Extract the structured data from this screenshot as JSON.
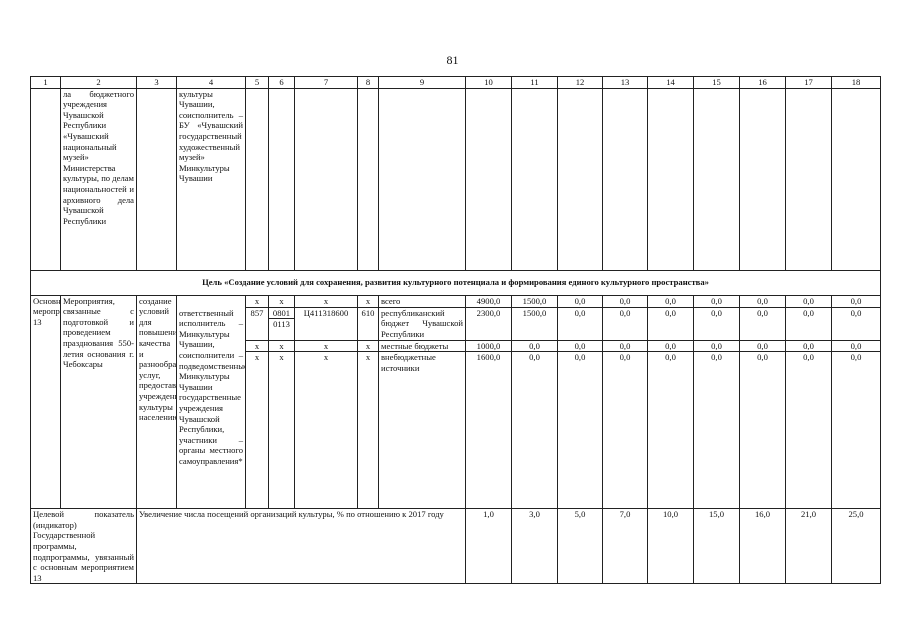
{
  "page_number": "81",
  "header": [
    "1",
    "2",
    "3",
    "4",
    "5",
    "6",
    "7",
    "8",
    "9",
    "10",
    "11",
    "12",
    "13",
    "14",
    "15",
    "16",
    "17",
    "18"
  ],
  "continuation": {
    "col2": "ла бюджетного учреждения Чувашской Республики «Чувашский национальный музей» Министерства культуры, по делам национальностей и архивного дела Чувашской Республики",
    "col4": "культуры Чувашии, соисполнитель – БУ «Чувашский государственный художественный музей» Минкультуры Чувашии"
  },
  "goal": "Цель «Создание условий для сохранения, развития культурного потенциала и формирования единого культурного пространства»",
  "main": {
    "col1": "Основное мероприятие 13",
    "col2": "Мероприятия, связанные с подготовкой и проведением празднования 550-летия основания г. Чебоксары",
    "col3": "создание условий для повышения качества и разнообразия услуг, предоставляемых учреждениями культуры населению",
    "col4": "ответственный исполнитель – Минкультуры Чувашии, соисполнители – подведомственные Минкультуры Чувашии государственные учреждения Чувашской Республики, участники – органы местного самоуправления*",
    "rows": [
      {
        "grbs": "x",
        "rz": "x",
        "rz2": "",
        "csr": "x",
        "vr": "x",
        "source": "всего",
        "values": [
          "4900,0",
          "1500,0",
          "0,0",
          "0,0",
          "0,0",
          "0,0",
          "0,0",
          "0,0",
          "0,0"
        ]
      },
      {
        "grbs": "857",
        "rz": "0801",
        "rz2": "0113",
        "csr": "Ц411318600",
        "vr": "610",
        "source": "республиканский бюджет Чувашской Республики",
        "values": [
          "2300,0",
          "1500,0",
          "0,0",
          "0,0",
          "0,0",
          "0,0",
          "0,0",
          "0,0",
          "0,0"
        ]
      },
      {
        "grbs": "x",
        "rz": "x",
        "rz2": "",
        "csr": "x",
        "vr": "x",
        "source": "местные бюджеты",
        "values": [
          "1000,0",
          "0,0",
          "0,0",
          "0,0",
          "0,0",
          "0,0",
          "0,0",
          "0,0",
          "0,0"
        ]
      },
      {
        "grbs": "x",
        "rz": "x",
        "rz2": "",
        "csr": "x",
        "vr": "x",
        "source": "внебюджетные источники",
        "values": [
          "1600,0",
          "0,0",
          "0,0",
          "0,0",
          "0,0",
          "0,0",
          "0,0",
          "0,0",
          "0,0"
        ]
      }
    ]
  },
  "indicator": {
    "label": "Целевой показатель (индикатор) Государственной программы, подпрограммы, увязанный с основным мероприятием 13",
    "text": "Увеличение числа посещений организаций культуры, % по отношению к 2017 году",
    "values": [
      "1,0",
      "3,0",
      "5,0",
      "7,0",
      "10,0",
      "15,0",
      "16,0",
      "21,0",
      "25,0"
    ]
  }
}
